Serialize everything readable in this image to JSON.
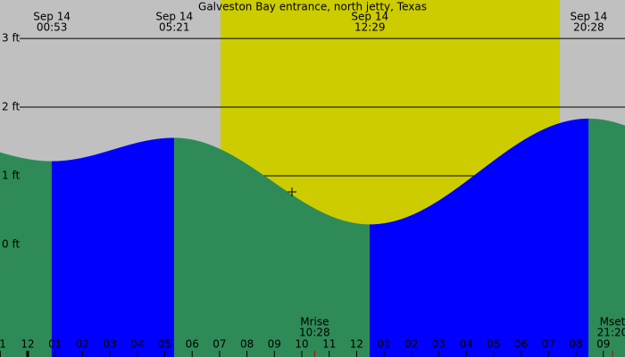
{
  "chart_data": {
    "type": "tide",
    "title": "Galveston Bay entrance, north jetty, Texas",
    "extremes": [
      {
        "date": "Sep 14",
        "time": "00:53",
        "height": 1.21
      },
      {
        "date": "Sep 14",
        "time": "05:21",
        "height": 1.55
      },
      {
        "date": "Sep 14",
        "time": "12:29",
        "height": 0.29
      },
      {
        "date": "Sep 14",
        "time": "20:28",
        "height": 1.83
      }
    ],
    "rising_color": "#0000ff",
    "falling_color": "#2e8b57",
    "xlim": [
      -1.01,
      21.79
    ],
    "ylim": [
      -1.3,
      3.56
    ],
    "yticks": [
      {
        "value": 0,
        "label": "0 ft"
      },
      {
        "value": 1,
        "label": "1 ft"
      },
      {
        "value": 2,
        "label": "2 ft"
      },
      {
        "value": 3,
        "label": "3 ft"
      }
    ],
    "hour_labels": [
      "1",
      "12",
      "01",
      "02",
      "03",
      "04",
      "05",
      "06",
      "07",
      "08",
      "09",
      "10",
      "11",
      "12",
      "01",
      "02",
      "03",
      "04",
      "05",
      "06",
      "07",
      "08",
      "09"
    ],
    "moon": [
      {
        "label": "Mrise",
        "time": "10:28"
      },
      {
        "label": "Mset",
        "time": "21:20"
      }
    ],
    "grid": true
  }
}
